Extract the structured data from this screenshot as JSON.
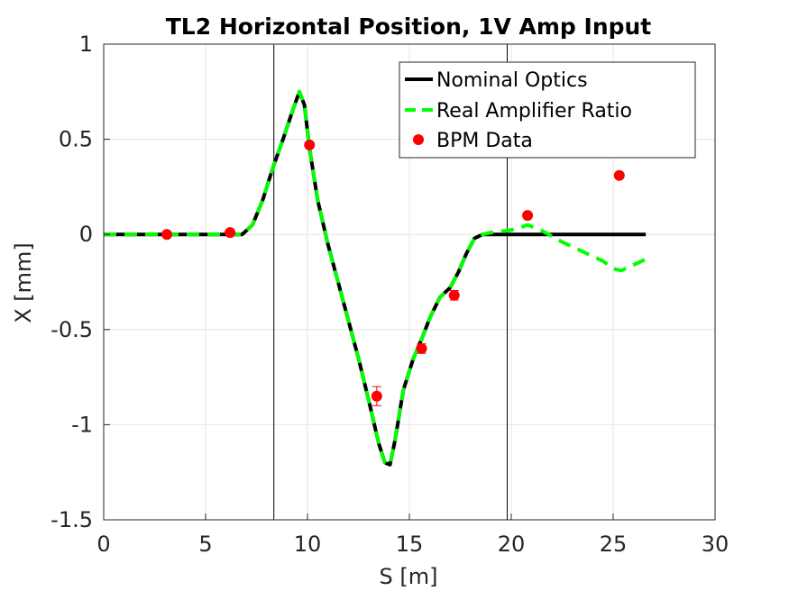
{
  "chart_data": {
    "type": "line",
    "title": "TL2 Horizontal Position, 1V Amp Input",
    "xlabel": "S [m]",
    "ylabel": "X [mm]",
    "xlim": [
      0,
      30
    ],
    "ylim": [
      -1.5,
      1
    ],
    "xticks": [
      0,
      5,
      10,
      15,
      20,
      25,
      30
    ],
    "xtick_labels": [
      "0",
      "5",
      "10",
      "15",
      "20",
      "25",
      "30"
    ],
    "yticks": [
      -1.5,
      -1,
      -0.5,
      0,
      0.5,
      1
    ],
    "ytick_labels": [
      "-1.5",
      "-1",
      "-0.5",
      "0",
      "0.5",
      "1"
    ],
    "grid": true,
    "legend_position": "top-right",
    "vertical_lines": [
      8.35,
      19.8
    ],
    "series": [
      {
        "name": "Nominal Optics",
        "style": "solid",
        "color": "#000000",
        "x": [
          0,
          2,
          4,
          6,
          6.8,
          7.3,
          7.8,
          8.3,
          8.8,
          9.3,
          9.6,
          9.85,
          10.1,
          10.5,
          11,
          11.5,
          12,
          12.5,
          13,
          13.5,
          13.8,
          14.05,
          14.3,
          14.7,
          15.2,
          15.6,
          16,
          16.5,
          17,
          17.4,
          17.8,
          18.2,
          18.6,
          19,
          20,
          21,
          22,
          23,
          24,
          25,
          26,
          26.6
        ],
        "y": [
          0,
          0,
          0,
          0,
          0,
          0.05,
          0.18,
          0.35,
          0.5,
          0.66,
          0.75,
          0.68,
          0.45,
          0.18,
          -0.05,
          -0.25,
          -0.45,
          -0.65,
          -0.87,
          -1.1,
          -1.2,
          -1.21,
          -1.08,
          -0.82,
          -0.65,
          -0.55,
          -0.44,
          -0.33,
          -0.28,
          -0.2,
          -0.1,
          -0.02,
          0,
          0,
          0,
          0,
          0,
          0,
          0,
          0,
          0,
          0
        ]
      },
      {
        "name": "Real Amplifier Ratio",
        "style": "dashed",
        "color": "#00ff00",
        "x": [
          0,
          2,
          4,
          6,
          6.8,
          7.3,
          7.8,
          8.3,
          8.8,
          9.3,
          9.6,
          9.85,
          10.1,
          10.5,
          11,
          11.5,
          12,
          12.5,
          13,
          13.5,
          13.8,
          14.05,
          14.3,
          14.7,
          15.2,
          15.6,
          16,
          16.5,
          17,
          17.4,
          17.8,
          18.2,
          18.6,
          19,
          19.8,
          20.3,
          20.8,
          21.5,
          22.5,
          23.5,
          24.5,
          25,
          25.4,
          26,
          26.6
        ],
        "y": [
          0,
          0,
          0,
          0,
          0,
          0.05,
          0.18,
          0.35,
          0.5,
          0.66,
          0.75,
          0.68,
          0.45,
          0.18,
          -0.05,
          -0.25,
          -0.45,
          -0.65,
          -0.87,
          -1.1,
          -1.2,
          -1.21,
          -1.08,
          -0.82,
          -0.65,
          -0.55,
          -0.44,
          -0.33,
          -0.28,
          -0.2,
          -0.1,
          -0.02,
          0,
          0.01,
          0.02,
          0.03,
          0.05,
          0.02,
          -0.04,
          -0.09,
          -0.14,
          -0.18,
          -0.19,
          -0.16,
          -0.13
        ]
      },
      {
        "name": "BPM Data",
        "style": "markers",
        "color": "#ff0000",
        "x": [
          3.1,
          6.2,
          10.1,
          13.4,
          15.6,
          17.2,
          20.8,
          25.3
        ],
        "y": [
          0,
          0.01,
          0.47,
          -0.85,
          -0.6,
          -0.32,
          0.1,
          0.31
        ],
        "yerr": [
          0.005,
          0.005,
          0.01,
          0.05,
          0.025,
          0.025,
          0.005,
          0.005
        ]
      }
    ]
  }
}
